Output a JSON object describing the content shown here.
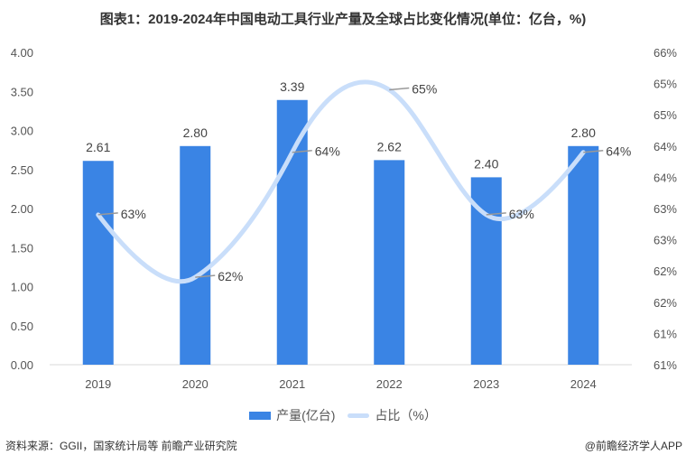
{
  "title": "图表1：2019-2024年中国电动工具行业产量及全球占比变化情况(单位：亿台，%)",
  "chart_data": {
    "type": "bar+line",
    "categories": [
      "2019",
      "2020",
      "2021",
      "2022",
      "2023",
      "2024"
    ],
    "series": [
      {
        "name": "产量(亿台)",
        "type": "bar",
        "axis": "left",
        "values": [
          2.61,
          2.8,
          3.39,
          2.62,
          2.4,
          2.8
        ],
        "labels": [
          "2.61",
          "2.80",
          "3.39",
          "2.62",
          "2.40",
          "2.80"
        ],
        "color": "#3a84e4"
      },
      {
        "name": "占比（%）",
        "type": "line",
        "smooth": true,
        "axis": "right",
        "values": [
          63.4,
          62.4,
          64.4,
          65.4,
          63.4,
          64.4
        ],
        "labels": [
          "63%",
          "62%",
          "64%",
          "65%",
          "63%",
          "64%"
        ],
        "color": "#c9defa"
      }
    ],
    "left_axis": {
      "ylim": [
        0,
        4
      ],
      "ticks": [
        "0.00",
        "0.50",
        "1.00",
        "1.50",
        "2.00",
        "2.50",
        "3.00",
        "3.50",
        "4.00"
      ]
    },
    "right_axis": {
      "ylim": [
        61,
        66
      ],
      "ticks": [
        "61%",
        "61%",
        "62%",
        "62%",
        "63%",
        "63%",
        "64%",
        "64%",
        "65%",
        "65%",
        "66%"
      ]
    },
    "grid": false,
    "legend": "bottom"
  },
  "source": "资料来源：GGII，国家统计局等 前瞻产业研究院",
  "credit": "@前瞻经济学人APP"
}
